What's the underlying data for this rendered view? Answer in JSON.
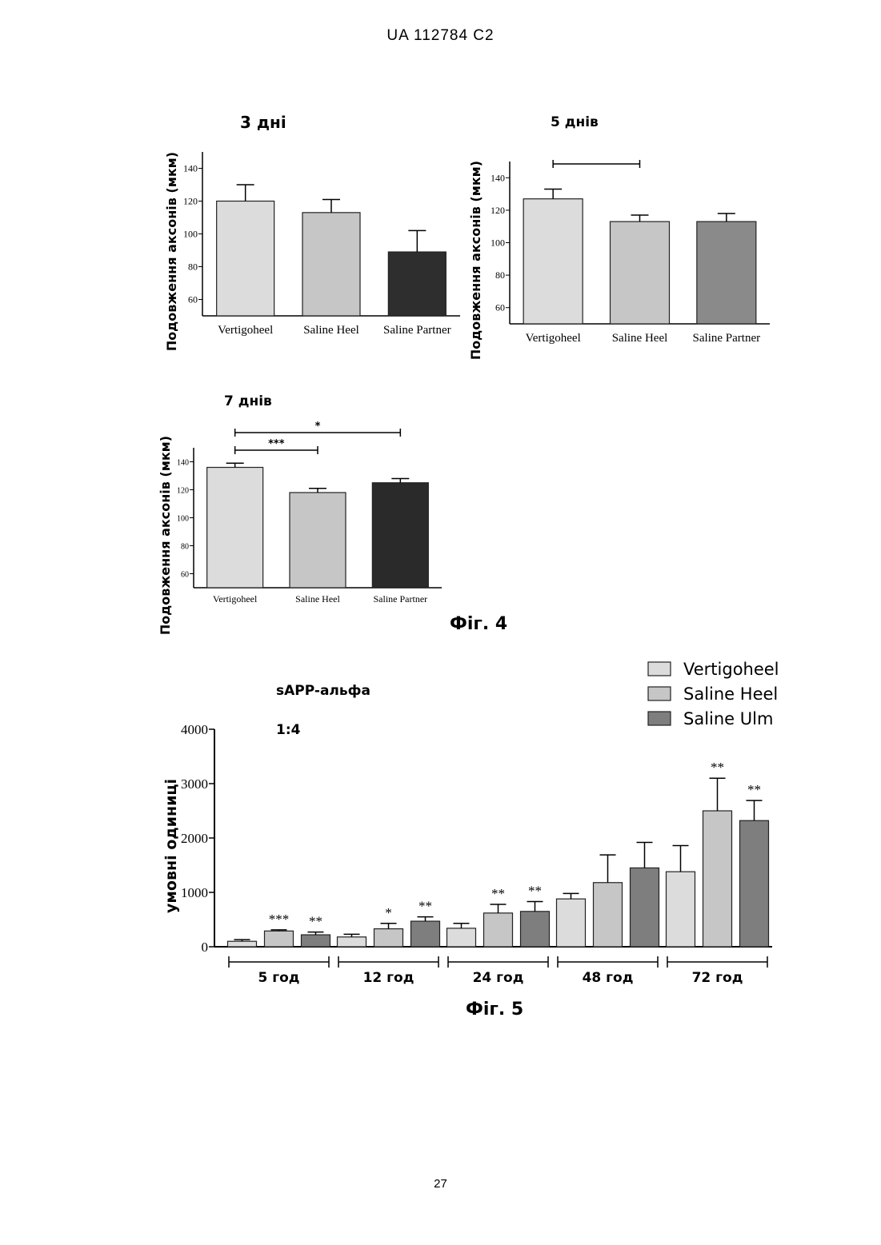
{
  "page": {
    "header": "UA   112784   C2",
    "page_number": "27",
    "fig4_caption": "Фіг. 4",
    "fig5_caption": "Фіг. 5"
  },
  "colors": {
    "vertigoheel": "#dcdcdc",
    "saline_heel": "#c6c6c6",
    "saline_partner_3d": "#2e2e2e",
    "saline_partner_5d": "#8a8a8a",
    "saline_partner_7d": "#2a2a2a",
    "saline_ulm": "#7e7e7e"
  },
  "chart_data": [
    {
      "type": "bar",
      "title": "3 дні",
      "ylabel": "Подовження аксонів (мкм)",
      "categories": [
        "Vertigoheel",
        "Saline Heel",
        "Saline Partner"
      ],
      "values": [
        120,
        113,
        89
      ],
      "errors": [
        10,
        8,
        13
      ],
      "ylim": [
        50,
        150
      ],
      "yticks": [
        60,
        80,
        100,
        120,
        140
      ],
      "significance": [],
      "grid": false
    },
    {
      "type": "bar",
      "title": "5 днів",
      "ylabel": "Подовження аксонів (мкм)",
      "categories": [
        "Vertigoheel",
        "Saline Heel",
        "Saline Partner"
      ],
      "values": [
        127,
        113,
        113
      ],
      "errors": [
        6,
        4,
        5
      ],
      "ylim": [
        50,
        150
      ],
      "yticks": [
        60,
        80,
        100,
        120,
        140
      ],
      "significance": [
        {
          "from": 0,
          "to": 1,
          "label": ""
        }
      ],
      "grid": false
    },
    {
      "type": "bar",
      "title": "7 днів",
      "ylabel": "Подовження аксонів (мкм)",
      "categories": [
        "Vertigoheel",
        "Saline Heel",
        "Saline Partner"
      ],
      "values": [
        136,
        118,
        125
      ],
      "errors": [
        3,
        3,
        3
      ],
      "ylim": [
        50,
        150
      ],
      "yticks": [
        60,
        80,
        100,
        120,
        140
      ],
      "significance": [
        {
          "from": 0,
          "to": 1,
          "label": "***"
        },
        {
          "from": 0,
          "to": 2,
          "label": "*"
        }
      ],
      "grid": false
    },
    {
      "type": "bar",
      "title": "sAPP-альфа",
      "subtitle": "1:4",
      "ylabel": "умовні одиниці",
      "ylim": [
        0,
        4000
      ],
      "yticks": [
        0,
        1000,
        2000,
        3000,
        4000
      ],
      "legend_position": "top-right",
      "categories": [
        "5 год",
        "12 год",
        "24 год",
        "48 год",
        "72 год"
      ],
      "series": [
        {
          "name": "Vertigoheel",
          "values": [
            100,
            180,
            340,
            880,
            1380
          ],
          "errors": [
            30,
            50,
            90,
            100,
            480
          ],
          "stars": [
            "",
            "",
            "",
            "",
            ""
          ]
        },
        {
          "name": "Saline Heel",
          "values": [
            290,
            330,
            620,
            1180,
            2500
          ],
          "errors": [
            20,
            100,
            160,
            510,
            600
          ],
          "stars": [
            "***",
            "*",
            "**",
            "",
            "**"
          ]
        },
        {
          "name": "Saline Ulm",
          "values": [
            220,
            470,
            650,
            1450,
            2320
          ],
          "errors": [
            50,
            80,
            180,
            470,
            370
          ],
          "stars": [
            "**",
            "**",
            "**",
            "",
            "**"
          ]
        }
      ],
      "grid": false
    }
  ]
}
